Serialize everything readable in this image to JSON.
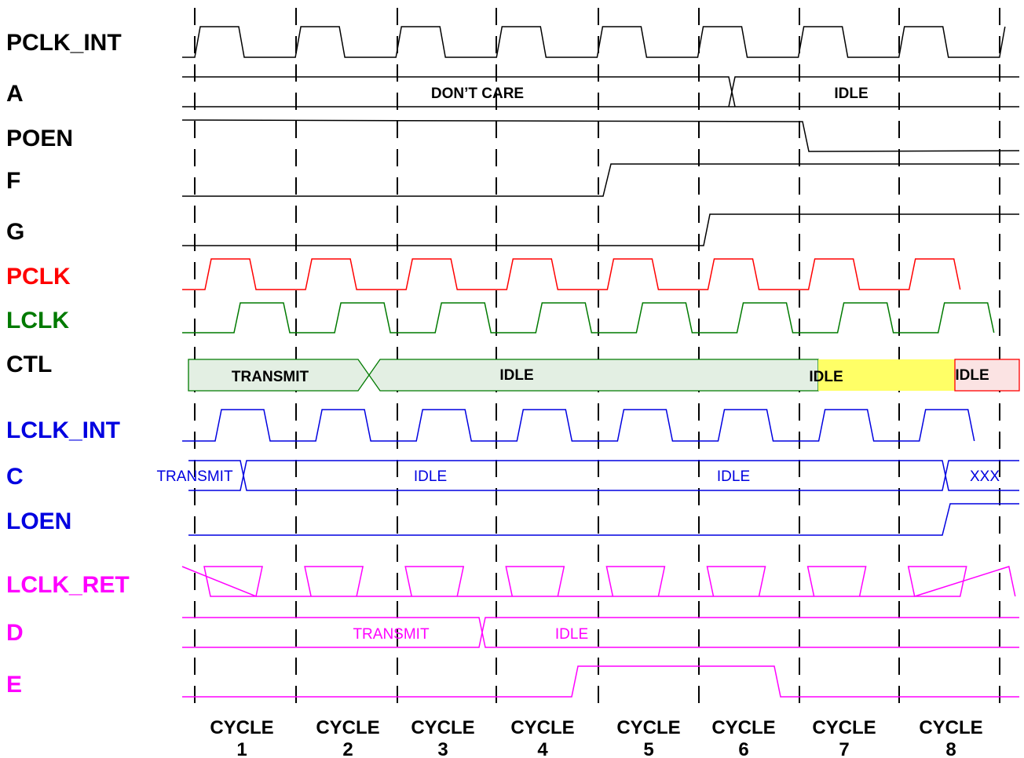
{
  "colors": {
    "black": "#000000",
    "red": "#ff0000",
    "green": "#007a00",
    "blue": "#0000e0",
    "magenta": "#ff00ff",
    "ctl_fill_green": "#e3efe3",
    "ctl_fill_yellow": "#ffff66",
    "ctl_fill_red": "#fbe3e3"
  },
  "signals": {
    "pclk_int": "PCLK_INT",
    "a": "A",
    "poen": "POEN",
    "f": "F",
    "g": "G",
    "pclk": "PCLK",
    "lclk": "LCLK",
    "ctl": "CTL",
    "lclk_int": "LCLK_INT",
    "c": "C",
    "loen": "LOEN",
    "lclk_ret": "LCLK_RET",
    "d": "D",
    "e": "E"
  },
  "bus_values": {
    "a_dont_care": "DON’T CARE",
    "a_idle": "IDLE",
    "ctl_transmit": "TRANSMIT",
    "ctl_idle_1": "IDLE",
    "ctl_idle_2": "IDLE",
    "ctl_idle_3": "IDLE",
    "c_transmit": "TRANSMIT",
    "c_idle_1": "IDLE",
    "c_idle_2": "IDLE",
    "c_xxx": "XXX",
    "d_transmit": "TRANSMIT",
    "d_idle": "IDLE"
  },
  "cycles": [
    {
      "word": "CYCLE",
      "num": "1"
    },
    {
      "word": "CYCLE",
      "num": "2"
    },
    {
      "word": "CYCLE",
      "num": "3"
    },
    {
      "word": "CYCLE",
      "num": "4"
    },
    {
      "word": "CYCLE",
      "num": "5"
    },
    {
      "word": "CYCLE",
      "num": "6"
    },
    {
      "word": "CYCLE",
      "num": "7"
    },
    {
      "word": "CYCLE",
      "num": "8"
    }
  ]
}
